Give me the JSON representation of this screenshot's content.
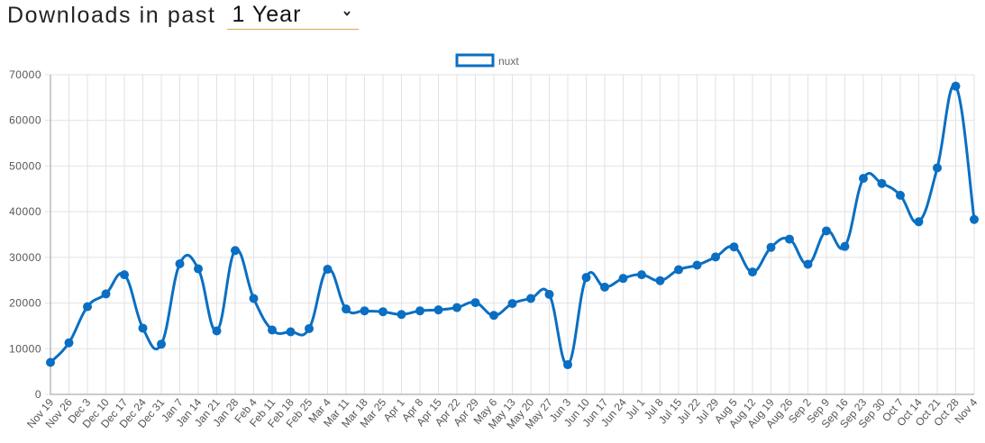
{
  "header": {
    "title": "Downloads in past",
    "period": "1 Year"
  },
  "colors": {
    "series": "#0a6fc2",
    "grid": "#e2e2e2",
    "axis": "#555555",
    "underline": "#d9a84e"
  },
  "chart_data": {
    "type": "line",
    "title": "",
    "xlabel": "",
    "ylabel": "",
    "ylim": [
      0,
      70000
    ],
    "yticks": [
      0,
      10000,
      20000,
      30000,
      40000,
      50000,
      60000,
      70000
    ],
    "grid": true,
    "legend": "top-center",
    "categories": [
      "Nov 19",
      "Nov 26",
      "Dec 3",
      "Dec 10",
      "Dec 17",
      "Dec 24",
      "Dec 31",
      "Jan 7",
      "Jan 14",
      "Jan 21",
      "Jan 28",
      "Feb 4",
      "Feb 11",
      "Feb 18",
      "Feb 25",
      "Mar 4",
      "Mar 11",
      "Mar 18",
      "Mar 25",
      "Apr 1",
      "Apr 8",
      "Apr 15",
      "Apr 22",
      "Apr 29",
      "May 6",
      "May 13",
      "May 20",
      "May 27",
      "Jun 3",
      "Jun 10",
      "Jun 17",
      "Jun 24",
      "Jul 1",
      "Jul 8",
      "Jul 15",
      "Jul 22",
      "Jul 29",
      "Aug 5",
      "Aug 12",
      "Aug 19",
      "Aug 26",
      "Sep 2",
      "Sep 9",
      "Sep 16",
      "Sep 23",
      "Sep 30",
      "Oct 7",
      "Oct 14",
      "Oct 21",
      "Oct 28",
      "Nov 4"
    ],
    "series": [
      {
        "name": "nuxt",
        "values": [
          7000,
          11300,
          19200,
          22000,
          26200,
          14500,
          11000,
          28600,
          27500,
          13900,
          31500,
          21000,
          14100,
          13700,
          14400,
          27400,
          18700,
          18300,
          18100,
          17500,
          18300,
          18500,
          19000,
          20100,
          17300,
          19900,
          21000,
          21900,
          6500,
          25600,
          23500,
          25400,
          26200,
          24900,
          27300,
          28300,
          30100,
          32300,
          26800,
          32200,
          34000,
          28500,
          35800,
          32400,
          47300,
          46200,
          43600,
          37800,
          49600,
          67500,
          38300
        ]
      }
    ]
  }
}
